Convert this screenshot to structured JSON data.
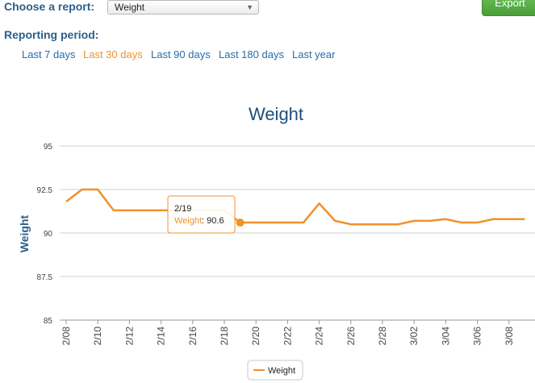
{
  "controls": {
    "report_label": "Choose a report:",
    "report_value": "Weight",
    "export_label": "Export",
    "period_label": "Reporting period:",
    "periods": [
      {
        "label": "Last 7 days",
        "active": false
      },
      {
        "label": "Last 30 days",
        "active": true
      },
      {
        "label": "Last 90 days",
        "active": false
      },
      {
        "label": "Last 180 days",
        "active": false
      },
      {
        "label": "Last year",
        "active": false
      }
    ]
  },
  "colors": {
    "series": "#f0922a",
    "active_link": "#f0922a",
    "link": "#2a6ca8",
    "title": "#1d4f7a",
    "export_button": "#5cb24a"
  },
  "tooltip": {
    "date": "2/19",
    "series": "Weight",
    "value": "90.6"
  },
  "chart_data": {
    "type": "line",
    "title": "Weight",
    "ylabel": "Weight",
    "xlabel": "",
    "ylim": [
      85,
      95
    ],
    "yticks": [
      "85",
      "87.5",
      "90",
      "92.5",
      "95"
    ],
    "xticks": [
      "2/08",
      "2/10",
      "2/12",
      "2/14",
      "2/16",
      "2/18",
      "2/20",
      "2/22",
      "2/24",
      "2/26",
      "2/28",
      "3/02",
      "3/04",
      "3/06",
      "3/08"
    ],
    "legend": "bottom-center",
    "grid": true,
    "series": [
      {
        "name": "Weight",
        "x": [
          "2/08",
          "2/09",
          "2/10",
          "2/11",
          "2/12",
          "2/13",
          "2/14",
          "2/15",
          "2/16",
          "2/17",
          "2/18",
          "2/19",
          "2/20",
          "2/21",
          "2/22",
          "2/23",
          "2/24",
          "2/25",
          "2/26",
          "2/27",
          "2/28",
          "3/01",
          "3/02",
          "3/03",
          "3/04",
          "3/05",
          "3/06",
          "3/07",
          "3/08",
          "3/09"
        ],
        "values": [
          91.8,
          92.5,
          92.5,
          91.3,
          91.3,
          91.3,
          91.3,
          91.3,
          91.3,
          91.3,
          91.3,
          90.6,
          90.6,
          90.6,
          90.6,
          90.6,
          91.7,
          90.7,
          90.5,
          90.5,
          90.5,
          90.5,
          90.7,
          90.7,
          90.8,
          90.6,
          90.6,
          90.8,
          90.8,
          90.8
        ]
      }
    ],
    "highlight": {
      "x": "2/19",
      "value": 90.6
    }
  }
}
